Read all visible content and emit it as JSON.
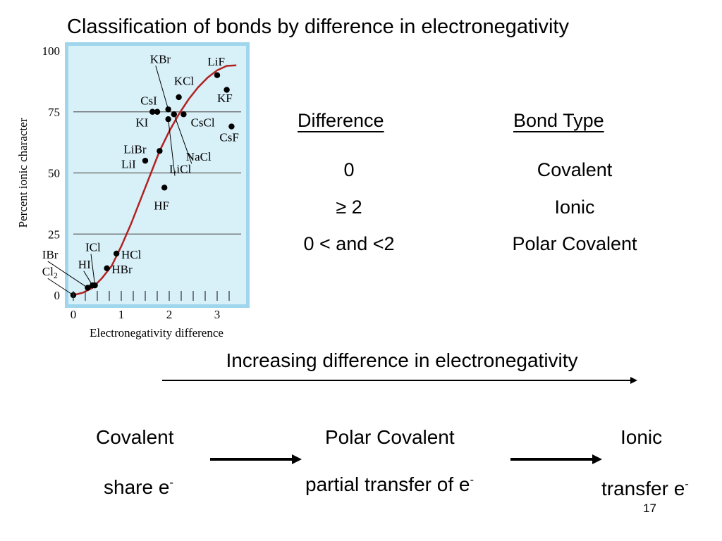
{
  "title": "Classification of bonds by difference in electronegativity",
  "table": {
    "headers": {
      "difference": "Difference",
      "bond_type": "Bond Type"
    },
    "rows": [
      {
        "difference": "0",
        "bond_type": "Covalent"
      },
      {
        "difference": "≥ 2",
        "bond_type": "Ionic"
      },
      {
        "difference": "0 < and <2",
        "bond_type": "Polar Covalent"
      }
    ]
  },
  "increasing_label": "Increasing difference in electronegativity",
  "spectrum": {
    "covalent": {
      "label": "Covalent",
      "desc": "share e",
      "sup": "-"
    },
    "polar": {
      "label": "Polar Covalent",
      "desc": "partial transfer of e",
      "sup": "-"
    },
    "ionic": {
      "label": "Ionic",
      "desc": "transfer e",
      "sup": "-"
    }
  },
  "page_number": "17",
  "colors": {
    "plot_bg": "#d8f0f8",
    "frame": "#9fd6ec",
    "curve": "#b22222",
    "arrow": "#000000"
  },
  "chart_data": {
    "type": "scatter",
    "xlabel": "Electronegativity difference",
    "ylabel": "Percent ionic character",
    "xlim": [
      0,
      3.5
    ],
    "ylim": [
      0,
      100
    ],
    "x_ticks": [
      0,
      0.25,
      0.5,
      0.75,
      1,
      1.25,
      1.5,
      1.75,
      2,
      2.25,
      2.5,
      2.75,
      3,
      3.25
    ],
    "x_tick_labels": [
      {
        "value": 0,
        "label": "0"
      },
      {
        "value": 1,
        "label": "1"
      },
      {
        "value": 2,
        "label": "2"
      },
      {
        "value": 3,
        "label": "3"
      }
    ],
    "y_ticks": [
      {
        "value": 0,
        "label": "0"
      },
      {
        "value": 25,
        "label": "25"
      },
      {
        "value": 50,
        "label": "50"
      },
      {
        "value": 75,
        "label": "75"
      },
      {
        "value": 100,
        "label": "100"
      }
    ],
    "gridlines_y": [
      25,
      50,
      75
    ],
    "curve": [
      [
        0,
        0
      ],
      [
        0.2,
        1
      ],
      [
        0.4,
        3
      ],
      [
        0.6,
        7
      ],
      [
        0.8,
        12
      ],
      [
        1.0,
        20
      ],
      [
        1.2,
        29
      ],
      [
        1.4,
        39
      ],
      [
        1.6,
        49
      ],
      [
        1.8,
        59
      ],
      [
        2.0,
        67
      ],
      [
        2.2,
        74
      ],
      [
        2.4,
        80
      ],
      [
        2.6,
        85
      ],
      [
        2.8,
        89
      ],
      [
        3.0,
        92
      ],
      [
        3.2,
        93.8
      ],
      [
        3.4,
        94
      ]
    ],
    "points": [
      {
        "label": "KBr",
        "x": 1.98,
        "y": 76,
        "lx": 1.6,
        "ly": 95,
        "line": true
      },
      {
        "label": "LiF",
        "x": 3.0,
        "y": 90,
        "lx": 2.8,
        "ly": 94
      },
      {
        "label": "KCl",
        "x": 2.2,
        "y": 81,
        "lx": 2.1,
        "ly": 86
      },
      {
        "label": "KF",
        "x": 3.2,
        "y": 84,
        "lx": 3.0,
        "ly": 79
      },
      {
        "label": "CsI",
        "x": 1.65,
        "y": 75,
        "lx": 1.4,
        "ly": 78
      },
      {
        "label": "KI",
        "x": 1.75,
        "y": 75,
        "lx": 1.3,
        "ly": 69
      },
      {
        "label": "CsCl",
        "x": 2.3,
        "y": 74,
        "lx": 2.45,
        "ly": 69
      },
      {
        "label": "CsF",
        "x": 3.3,
        "y": 69,
        "lx": 3.05,
        "ly": 63
      },
      {
        "label": "NaCl",
        "x": 2.1,
        "y": 74,
        "lx": 2.35,
        "ly": 55,
        "line": true
      },
      {
        "label": "LiCl",
        "x": 1.98,
        "y": 72,
        "lx": 2.0,
        "ly": 50,
        "line": true
      },
      {
        "label": "LiBr",
        "x": 1.8,
        "y": 59,
        "lx": 1.05,
        "ly": 58
      },
      {
        "label": "LiI",
        "x": 1.5,
        "y": 55,
        "lx": 1.0,
        "ly": 52
      },
      {
        "label": "HF",
        "x": 1.9,
        "y": 44,
        "lx": 1.68,
        "ly": 35
      },
      {
        "label": "ICl",
        "x": 0.45,
        "y": 4,
        "lx": 0.25,
        "ly": 18,
        "line": true
      },
      {
        "label": "HCl",
        "x": 0.9,
        "y": 17,
        "lx": 1.0,
        "ly": 15
      },
      {
        "label": "IBr",
        "x": 0.3,
        "y": 3,
        "lx": -0.65,
        "ly": 15,
        "line": true
      },
      {
        "label": "HI",
        "x": 0.4,
        "y": 4,
        "lx": 0.1,
        "ly": 11,
        "line": true
      },
      {
        "label": "HBr",
        "x": 0.7,
        "y": 11,
        "lx": 0.8,
        "ly": 9
      },
      {
        "label": "Cl",
        "sub": "2",
        "x": 0.0,
        "y": 0,
        "lx": -0.65,
        "ly": 8,
        "line": true
      }
    ]
  }
}
